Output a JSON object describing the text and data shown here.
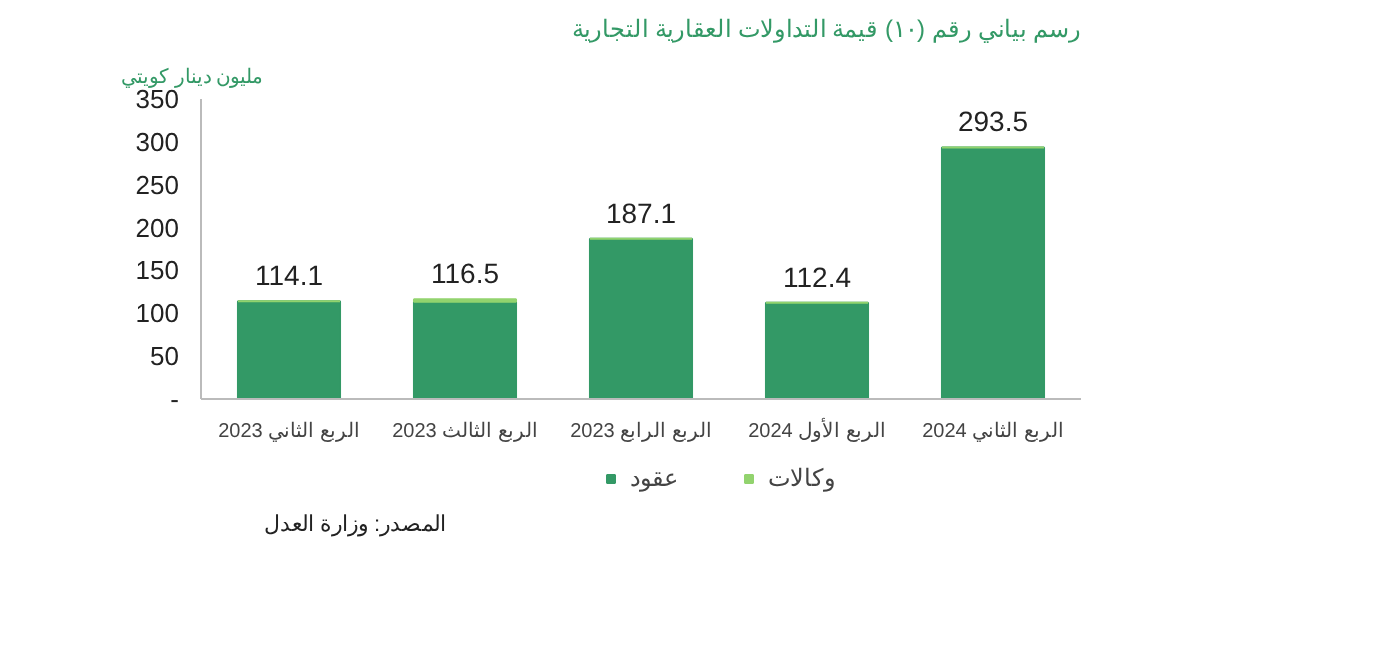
{
  "chart_data": {
    "type": "bar",
    "title": "رسم بياني رقم (١٠) قيمة التداولات العقارية التجارية",
    "ylabel": "مليون دينار كويتي",
    "annotations": [
      "المصدر: وزارة العدل"
    ],
    "categories": [
      "الربع الثاني 2023",
      "الربع الثالث 2023",
      "الربع الرابع 2023",
      "الربع الأول 2024",
      "الربع الثاني 2024"
    ],
    "stacked": true,
    "series": [
      {
        "name": "عقود",
        "color": "#339966",
        "values": [
          114.1,
          113.5,
          187.1,
          112.4,
          293.5
        ]
      },
      {
        "name": "وكالات",
        "color": "#92d36e",
        "values": [
          0,
          3,
          0,
          0,
          0
        ]
      }
    ],
    "totals": [
      "114.1",
      "116.5",
      "187.1",
      "112.4",
      "293.5"
    ],
    "ylim": [
      0,
      350
    ],
    "yticks": [
      {
        "value": 0,
        "label": "-"
      },
      50,
      100,
      150,
      200,
      250,
      300,
      350
    ],
    "grid": false,
    "legend": "bottom"
  }
}
